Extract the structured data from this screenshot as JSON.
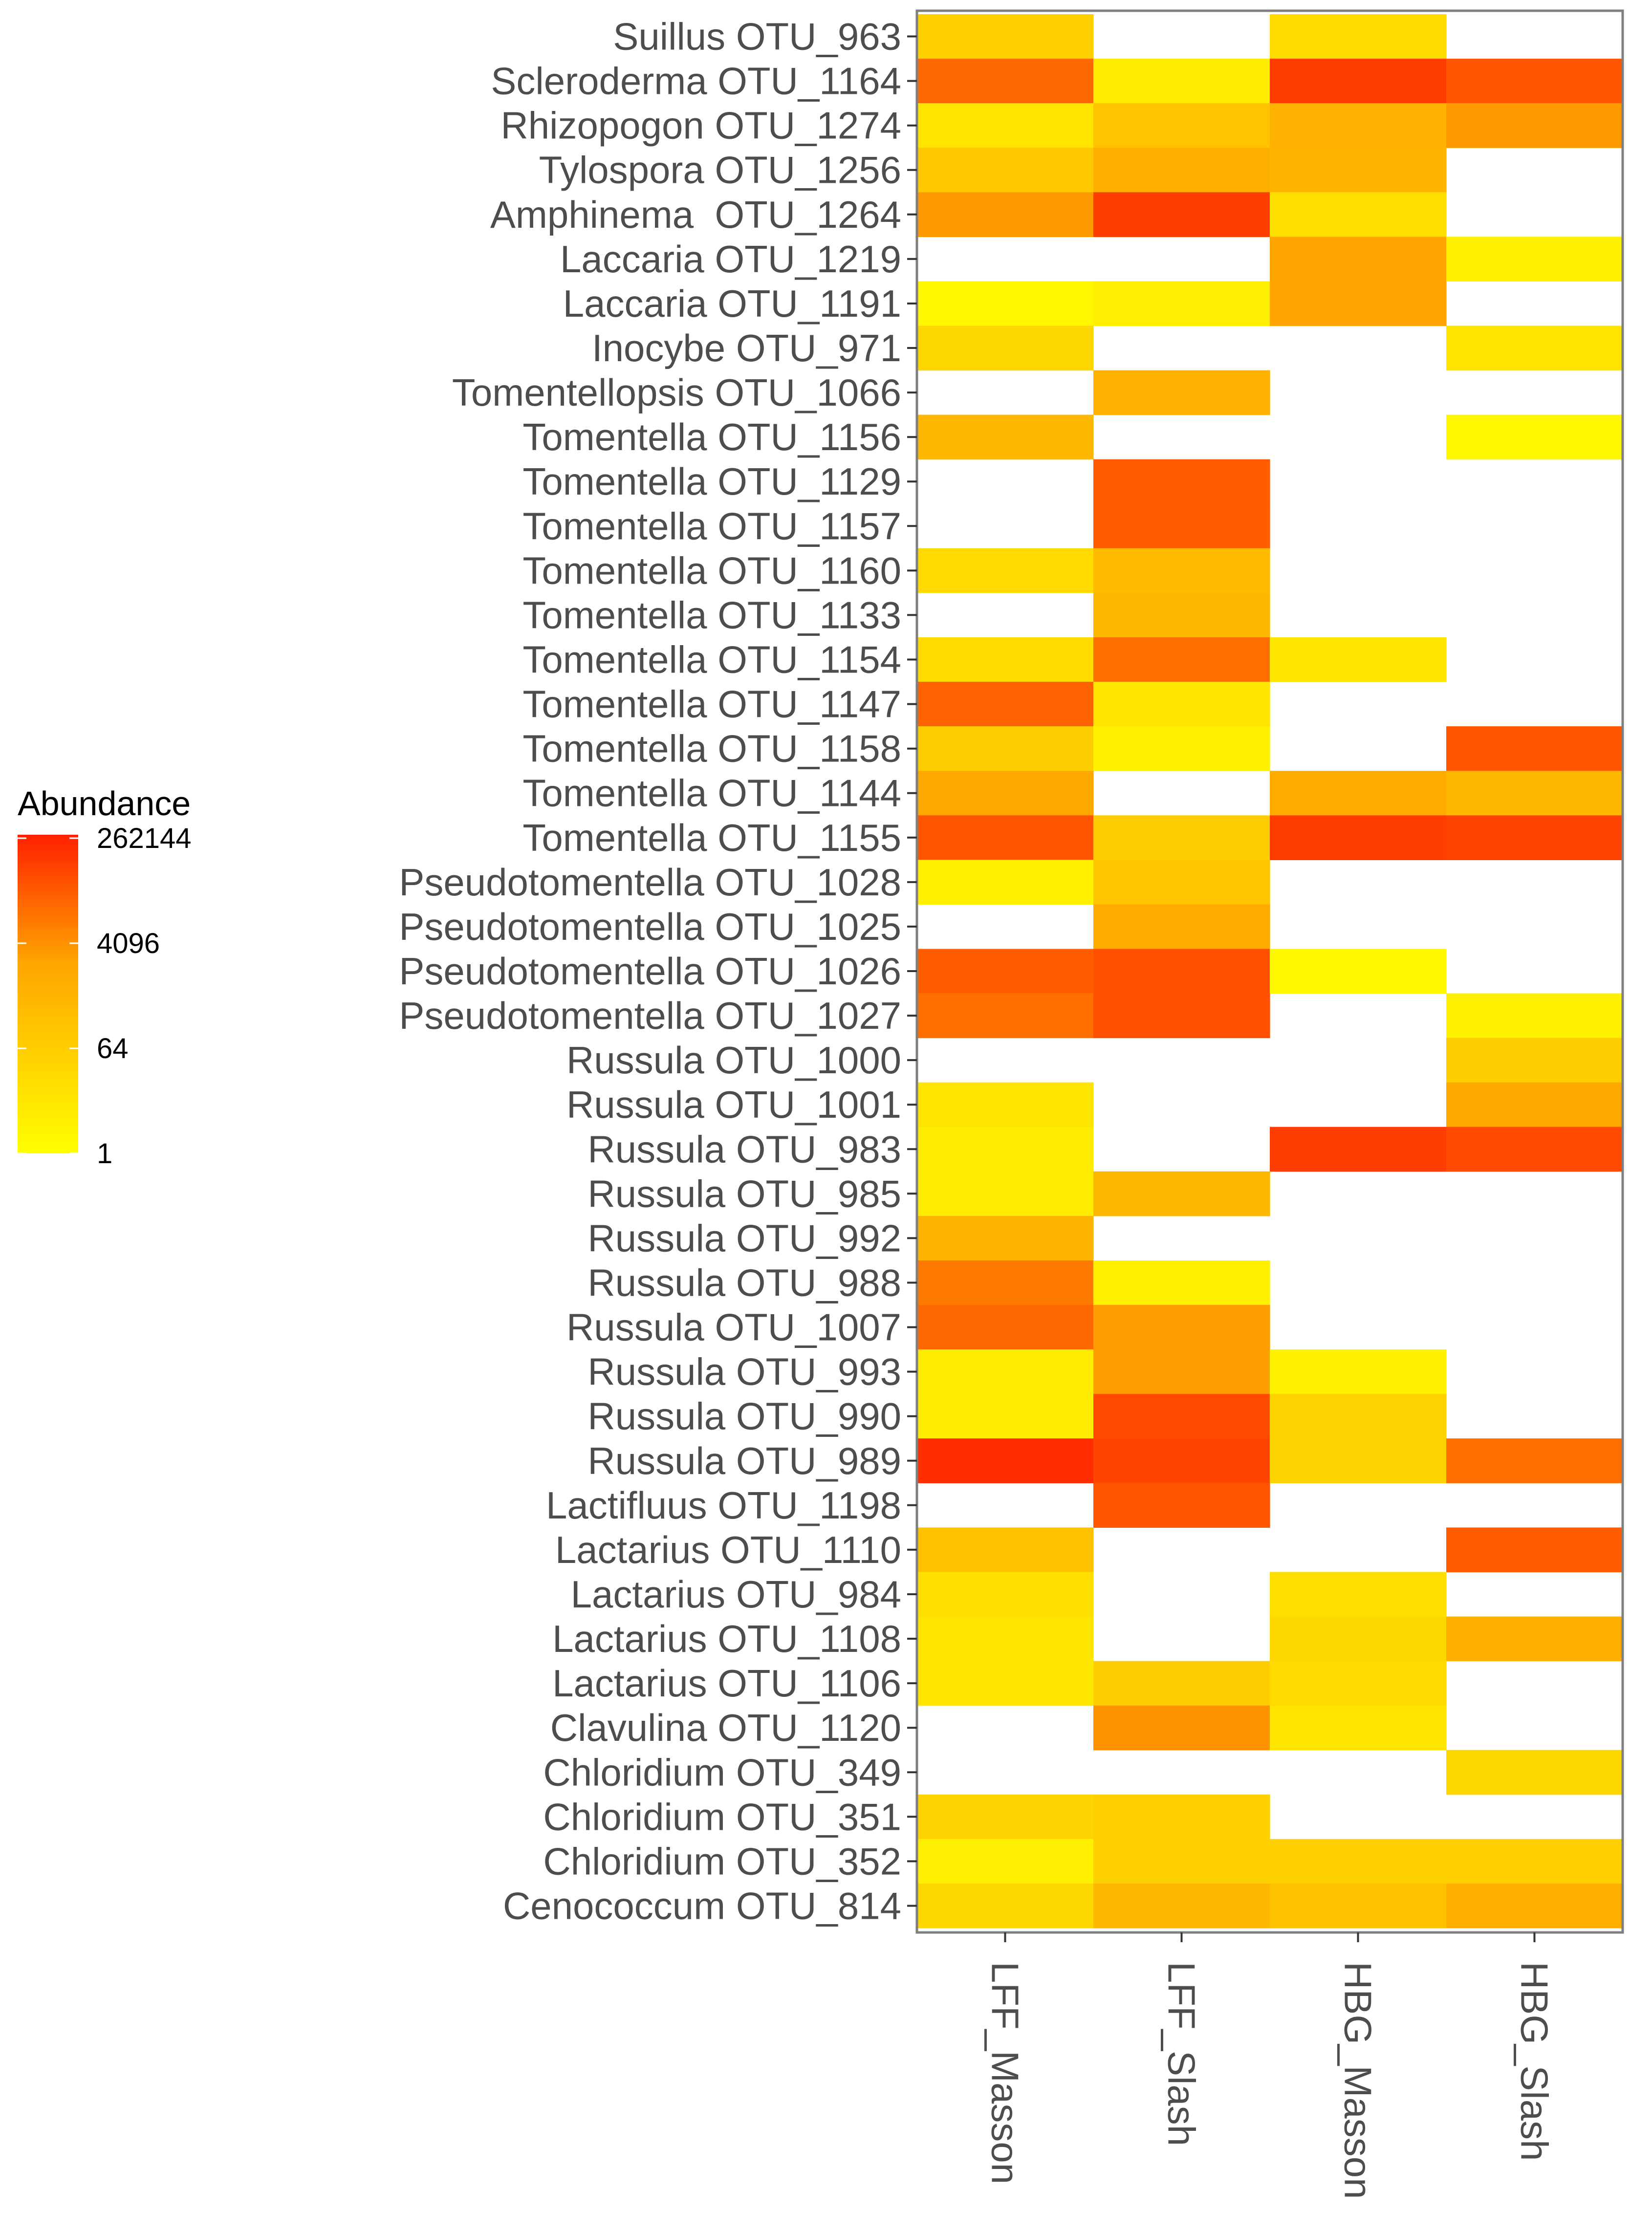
{
  "chart_data": {
    "type": "heatmap",
    "title": "",
    "xlabel": "",
    "ylabel": "",
    "columns": [
      "LFF_Masson",
      "LFF_Slash",
      "HBG_Masson",
      "HBG_Slash"
    ],
    "rows": [
      "Suillus OTU_963",
      "Scleroderma OTU_1164",
      "Rhizopogon OTU_1274",
      "Tylospora OTU_1256",
      "Amphinema  OTU_1264",
      "Laccaria OTU_1219",
      "Laccaria OTU_1191",
      "Inocybe OTU_971",
      "Tomentellopsis OTU_1066",
      "Tomentella OTU_1156",
      "Tomentella OTU_1129",
      "Tomentella OTU_1157",
      "Tomentella OTU_1160",
      "Tomentella OTU_1133",
      "Tomentella OTU_1154",
      "Tomentella OTU_1147",
      "Tomentella OTU_1158",
      "Tomentella OTU_1144",
      "Tomentella OTU_1155",
      "Pseudotomentella OTU_1028",
      "Pseudotomentella OTU_1025",
      "Pseudotomentella OTU_1026",
      "Pseudotomentella OTU_1027",
      "Russula OTU_1000",
      "Russula OTU_1001",
      "Russula OTU_983",
      "Russula OTU_985",
      "Russula OTU_992",
      "Russula OTU_988",
      "Russula OTU_1007",
      "Russula OTU_993",
      "Russula OTU_990",
      "Russula OTU_989",
      "Lactifluus OTU_1198",
      "Lactarius OTU_1110",
      "Lactarius OTU_984",
      "Lactarius OTU_1108",
      "Lactarius OTU_1106",
      "Clavulina OTU_1120",
      "Chloridium OTU_349",
      "Chloridium OTU_351",
      "Chloridium OTU_352",
      "Cenococcum OTU_814"
    ],
    "values": [
      [
        50,
        null,
        20,
        null
      ],
      [
        20000,
        5,
        100000,
        40000
      ],
      [
        10,
        150,
        600,
        3000
      ],
      [
        100,
        800,
        500,
        null
      ],
      [
        3000,
        100000,
        15,
        null
      ],
      [
        null,
        null,
        2000,
        3
      ],
      [
        2,
        4,
        2000,
        null
      ],
      [
        30,
        null,
        null,
        10
      ],
      [
        null,
        600,
        null,
        null
      ],
      [
        400,
        null,
        null,
        2
      ],
      [
        null,
        30000,
        null,
        null
      ],
      [
        null,
        30000,
        null,
        null
      ],
      [
        25,
        300,
        null,
        null
      ],
      [
        null,
        400,
        null,
        null
      ],
      [
        20,
        15000,
        8,
        null
      ],
      [
        25000,
        8,
        null,
        null
      ],
      [
        60,
        3,
        null,
        40000
      ],
      [
        1500,
        null,
        1200,
        400
      ],
      [
        40000,
        60,
        100000,
        80000
      ],
      [
        3,
        120,
        null,
        null
      ],
      [
        null,
        1200,
        null,
        null
      ],
      [
        30000,
        50000,
        2,
        null
      ],
      [
        15000,
        50000,
        null,
        3
      ],
      [
        null,
        null,
        null,
        60
      ],
      [
        10,
        null,
        null,
        1500
      ],
      [
        5,
        null,
        100000,
        60000
      ],
      [
        5,
        400,
        null,
        null
      ],
      [
        500,
        null,
        null,
        null
      ],
      [
        10000,
        3,
        null,
        null
      ],
      [
        20000,
        2500,
        null,
        null
      ],
      [
        5,
        2500,
        3,
        null
      ],
      [
        5,
        60000,
        40,
        null
      ],
      [
        180000,
        80000,
        40,
        15000
      ],
      [
        null,
        40000,
        null,
        null
      ],
      [
        200,
        null,
        null,
        30000
      ],
      [
        15,
        null,
        15,
        null
      ],
      [
        8,
        null,
        30,
        800
      ],
      [
        8,
        60,
        25,
        null
      ],
      [
        null,
        4000,
        10,
        null
      ],
      [
        null,
        null,
        null,
        30
      ],
      [
        40,
        50,
        null,
        null
      ],
      [
        4,
        50,
        50,
        50
      ],
      [
        30,
        400,
        200,
        800
      ]
    ],
    "color_scale": {
      "title": "Abundance",
      "ticks": [
        "262144",
        "4096",
        "64",
        "1"
      ],
      "tick_values": [
        262144,
        4096,
        64,
        1
      ],
      "range": [
        1,
        300000
      ],
      "transform": "log2",
      "low_color": "#ffff00",
      "mid_color": "#ffa500",
      "high_color": "#ff2000"
    }
  }
}
